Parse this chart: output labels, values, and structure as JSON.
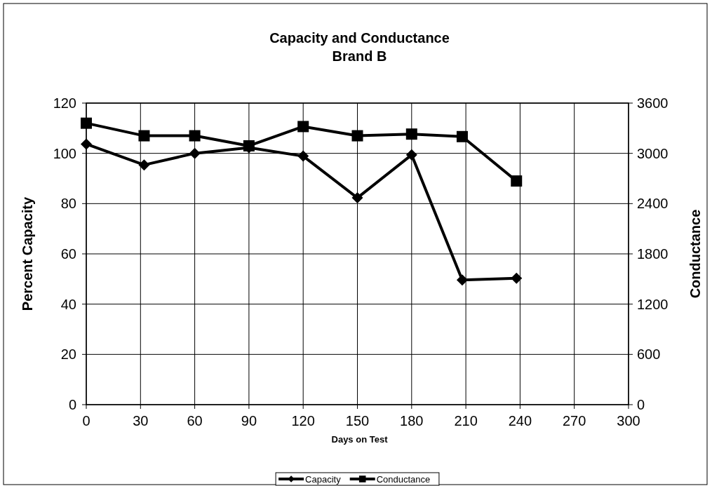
{
  "chart_data": {
    "type": "line",
    "title": "Capacity and Conductance\nBrand B",
    "xlabel": "Days on Test",
    "ylabel": "Percent Capacity",
    "y2label": "Conductance",
    "x": [
      0,
      32,
      60,
      90,
      120,
      150,
      180,
      208,
      238
    ],
    "series": [
      {
        "name": "Capacity",
        "color": "#000000",
        "marker": "diamond",
        "values": [
          103.7,
          95.4,
          100.0,
          102.3,
          98.9,
          82.3,
          99.4,
          49.6,
          50.3
        ]
      },
      {
        "name": "Conductance",
        "color": "#000000",
        "marker": "square",
        "axis": "y2",
        "values": [
          3360,
          3210,
          3210,
          3090,
          3320,
          3210,
          3230,
          3200,
          2670
        ]
      }
    ],
    "xlim": [
      0,
      300
    ],
    "xticks": [
      0,
      30,
      60,
      90,
      120,
      150,
      180,
      210,
      240,
      270,
      300
    ],
    "ylim": [
      0,
      120
    ],
    "yticks": [
      0,
      20,
      40,
      60,
      80,
      100,
      120
    ],
    "y2lim": [
      0,
      3600
    ],
    "y2ticks": [
      0,
      600,
      1200,
      1800,
      2400,
      3000,
      3600
    ],
    "grid": true,
    "legend": "bottom"
  }
}
